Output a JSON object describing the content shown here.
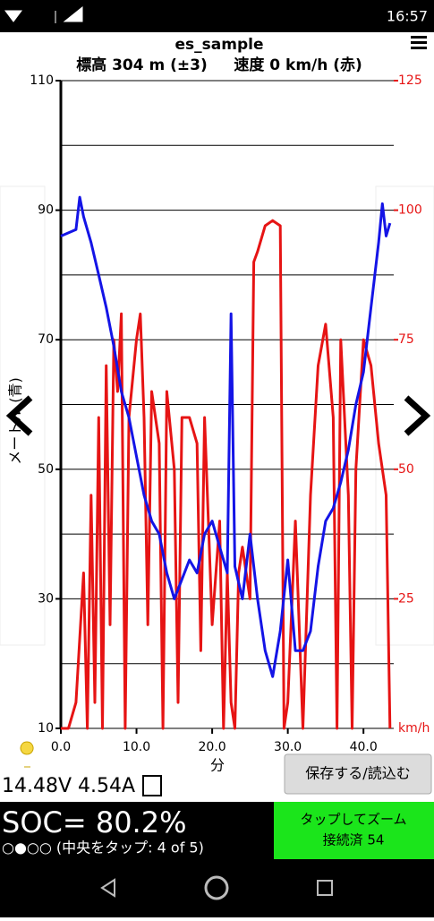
{
  "status": {
    "time": "16:57"
  },
  "chart_data": {
    "type": "line",
    "title": "es_sample",
    "subtitle": "標高 304 m (±3)     速度 0 km/h (赤)",
    "xlabel": "分",
    "ylabel": "メートル (青)",
    "y2label": "km/h",
    "xlim": [
      0,
      44
    ],
    "xticks": [
      {
        "value": 0,
        "label": "0.0"
      },
      {
        "value": 10,
        "label": "10.0"
      },
      {
        "value": 20,
        "label": "20.0"
      },
      {
        "value": 30,
        "label": "30.0"
      },
      {
        "value": 40,
        "label": "40.0"
      }
    ],
    "ylim": [
      10,
      110
    ],
    "yticks": [
      10,
      30,
      50,
      70,
      90,
      110
    ],
    "ygrid": [
      10,
      20,
      30,
      40,
      50,
      60,
      70,
      80,
      90,
      100,
      110
    ],
    "y2lim": [
      0,
      125
    ],
    "y2ticks": [
      25,
      50,
      75,
      100,
      125
    ],
    "series": [
      {
        "color": "#1414e6",
        "x": [
          0,
          2,
          2.5,
          3,
          4,
          5,
          6,
          7,
          8,
          9,
          10,
          11,
          12,
          13,
          14,
          15,
          16,
          17,
          18,
          19,
          20,
          21,
          22,
          22.5,
          23,
          24,
          25,
          26,
          27,
          28,
          29,
          30,
          31,
          32,
          33,
          34,
          35,
          36,
          37,
          38,
          39,
          40,
          41,
          42,
          42.5,
          43,
          43.5
        ],
        "values": [
          86,
          87,
          92,
          89,
          85,
          80,
          75,
          69,
          62,
          58,
          52,
          46,
          42,
          40,
          34,
          30,
          33,
          36,
          34,
          40,
          42,
          38,
          34,
          74,
          35,
          30,
          40,
          30,
          22,
          18,
          25,
          36,
          22,
          22,
          25,
          35,
          42,
          44,
          48,
          53,
          60,
          65,
          75,
          85,
          91,
          86,
          88
        ]
      },
      {
        "color": "#e61414",
        "axis": "y2",
        "x": [
          0,
          1,
          2,
          3,
          3.5,
          4,
          4.5,
          5,
          5.5,
          6,
          6.5,
          7,
          7.5,
          8,
          8.5,
          9,
          10,
          10.5,
          11,
          11.5,
          12,
          13,
          13.5,
          14,
          15,
          15.5,
          16,
          17,
          18,
          18.5,
          19,
          20,
          21,
          21.5,
          22,
          22.5,
          23,
          23.5,
          24,
          25,
          25.5,
          26,
          27,
          28,
          29,
          29.5,
          30,
          31,
          32,
          33,
          34,
          35,
          36,
          36.5,
          37,
          38,
          38.5,
          39,
          40,
          41,
          42,
          43,
          43.5
        ],
        "values": [
          0,
          0,
          5,
          30,
          0,
          45,
          5,
          60,
          0,
          70,
          20,
          75,
          65,
          80,
          0,
          60,
          75,
          80,
          60,
          20,
          65,
          55,
          0,
          65,
          50,
          5,
          60,
          60,
          55,
          15,
          60,
          20,
          40,
          0,
          30,
          5,
          0,
          30,
          35,
          25,
          90,
          92,
          97,
          98,
          97,
          0,
          5,
          40,
          0,
          45,
          70,
          78,
          60,
          0,
          75,
          45,
          0,
          50,
          75,
          70,
          55,
          45,
          0
        ]
      }
    ]
  },
  "footer": {
    "power": "14.48V 4.54A",
    "button": "保存する/読込む",
    "soc": "SOC= 80.2%",
    "pager": "○●○○ (中央をタップ: 4 of 5)",
    "zoom": "タップしてズーム",
    "connection": "接続済 54"
  }
}
